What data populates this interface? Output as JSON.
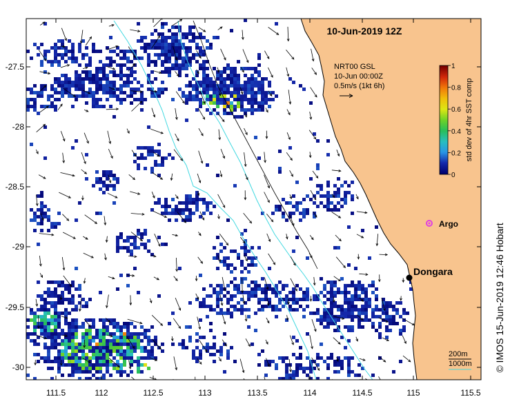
{
  "map": {
    "title": "10-Jun-2019 12Z",
    "product": {
      "line1": "NRT00 GSL",
      "line2": "10-Jun 00:00Z",
      "line3": "0.5m/s (1kt 6h)"
    },
    "colorbar": {
      "label": "std dev of 4hr SST comp",
      "ticks": [
        "0",
        "0.2",
        "0.4",
        "0.6",
        "0.8",
        "1"
      ],
      "range": [
        0,
        1
      ]
    },
    "x_ticks": [
      "111.5",
      "112",
      "112.5",
      "113",
      "113.5",
      "114",
      "114.5",
      "115",
      "115.5"
    ],
    "y_ticks": [
      "-27.5",
      "-28",
      "-28.5",
      "-29",
      "-29.5",
      "-30"
    ],
    "places": [
      {
        "name": "Argo",
        "lon": 115.13,
        "lat": -28.84,
        "marker": "argo-float",
        "color": "#e040e0"
      },
      {
        "name": "Dongara",
        "lon": 114.93,
        "lat": -29.26,
        "marker": "town",
        "color": "#000000"
      }
    ],
    "contours": {
      "label_200": "200m",
      "label_1000": "1000m"
    },
    "credit": "© IMOS 15-Jun-2019 12:46 Hobart",
    "colors": {
      "land": "#f8c48e",
      "coast": "#000000",
      "shelf_contour": "#40d8e0",
      "deep_contour": "#000000",
      "arrow": "#000000"
    }
  }
}
